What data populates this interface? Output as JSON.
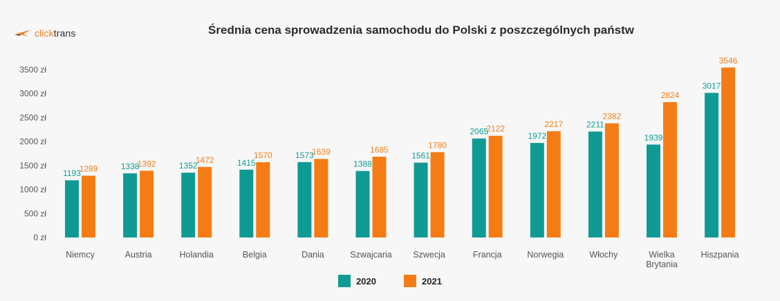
{
  "brand": {
    "name_part1": "click",
    "name_part2": "trans"
  },
  "chart_data": {
    "type": "bar",
    "title": "Średnia cena sprowadzenia samochodu do Polski z poszczególnych państw",
    "categories": [
      "Niemcy",
      "Austria",
      "Holandia",
      "Belgia",
      "Dania",
      "Szwajcaria",
      "Szwecja",
      "Francja",
      "Norwegia",
      "Włochy",
      "Wielka\nBrytania",
      "Hiszpania"
    ],
    "series": [
      {
        "name": "2020",
        "color": "#0f9b94",
        "values": [
          1193,
          1338,
          1352,
          1415,
          1573,
          1388,
          1561,
          2065,
          1972,
          2211,
          1939,
          3017
        ]
      },
      {
        "name": "2021",
        "color": "#f57c14",
        "values": [
          1289,
          1392,
          1472,
          1570,
          1639,
          1685,
          1780,
          2122,
          2217,
          2382,
          2824,
          3546
        ]
      }
    ],
    "ylim": [
      0,
      3500
    ],
    "yticks": [
      0,
      500,
      1000,
      1500,
      2000,
      2500,
      3000,
      3500
    ],
    "ytick_labels": [
      "0 zł",
      "500 zł",
      "1000 zł",
      "1500 zł",
      "2000 zł",
      "2500 zł",
      "3000 zł",
      "3500 zł"
    ],
    "legend_position": "bottom",
    "grid": false
  }
}
